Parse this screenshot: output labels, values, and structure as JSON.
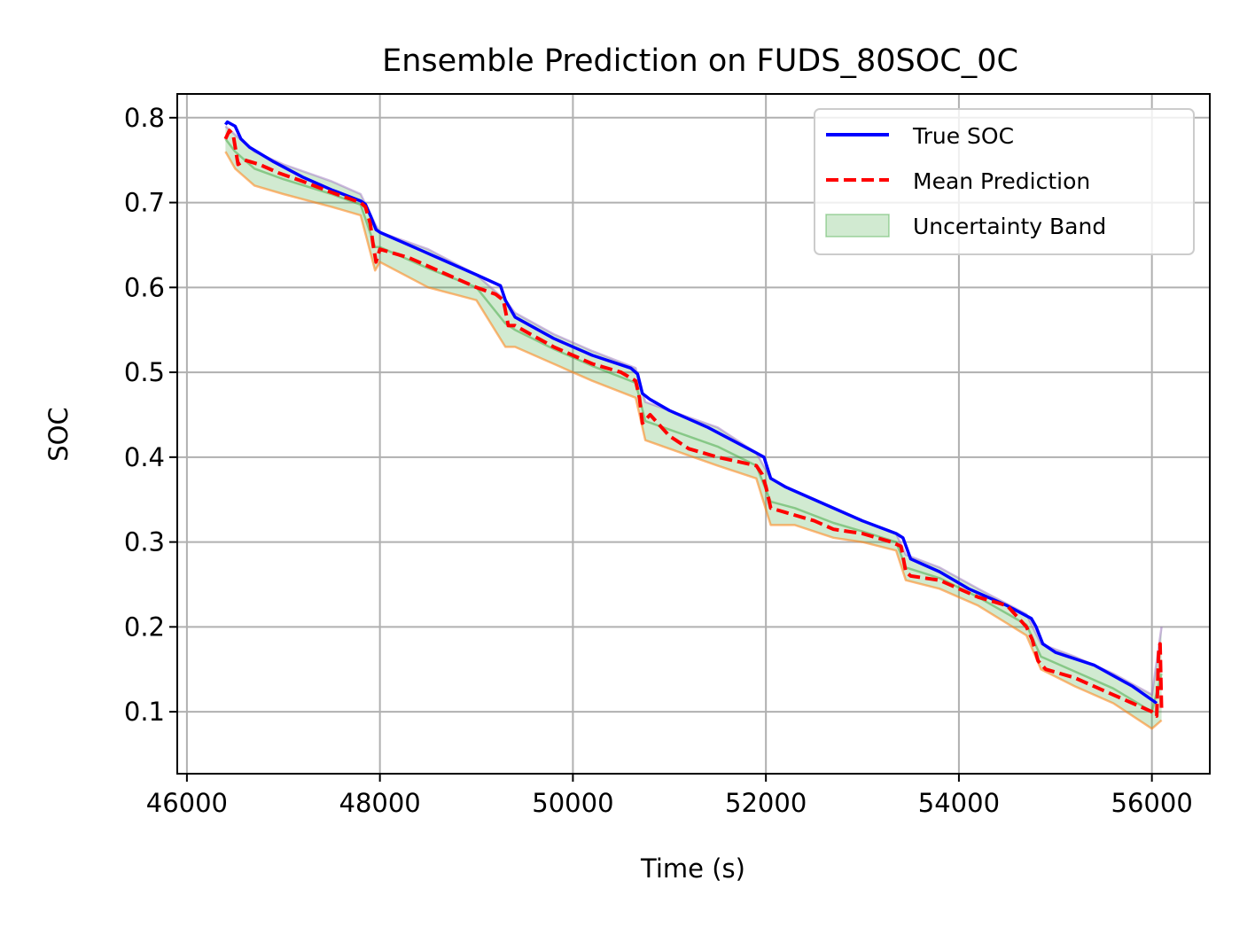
{
  "chart_data": {
    "type": "line",
    "title": "Ensemble Prediction on FUDS_80SOC_0C",
    "xlabel": "Time (s)",
    "ylabel": "SOC",
    "xlim": [
      45900,
      56600
    ],
    "ylim": [
      0.027,
      0.828
    ],
    "xticks": [
      46000,
      48000,
      50000,
      52000,
      54000,
      56000
    ],
    "xtick_labels": [
      "46000",
      "48000",
      "50000",
      "52000",
      "54000",
      "56000"
    ],
    "yticks": [
      0.1,
      0.2,
      0.3,
      0.4,
      0.5,
      0.6,
      0.7,
      0.8
    ],
    "ytick_labels": [
      "0.1",
      "0.2",
      "0.3",
      "0.4",
      "0.5",
      "0.6",
      "0.7",
      "0.8"
    ],
    "grid": true,
    "legend_position": "top-right",
    "legend": [
      "True SOC",
      "Mean Prediction",
      "Uncertainty Band"
    ],
    "colors": {
      "true_soc": "#0000ff",
      "mean_prediction": "#ff0000",
      "band_fill": "#2ca02c",
      "member_orange": "#ff7f0e",
      "member_green": "#2ca02c",
      "member_purple": "#9467bd",
      "grid": "#b0b0b0"
    },
    "series": [
      {
        "name": "True SOC",
        "x": [
          46400,
          46420,
          46500,
          46560,
          46650,
          46900,
          47200,
          47500,
          47800,
          47850,
          47900,
          47960,
          48000,
          48400,
          49000,
          49250,
          49300,
          49400,
          49800,
          50200,
          50600,
          50670,
          50720,
          50800,
          51000,
          51400,
          51900,
          51980,
          52050,
          52200,
          52600,
          53000,
          53350,
          53420,
          53500,
          53800,
          54100,
          54500,
          54750,
          54800,
          54870,
          55000,
          55400,
          55800,
          56050
        ],
        "y": [
          0.792,
          0.795,
          0.79,
          0.775,
          0.765,
          0.748,
          0.73,
          0.715,
          0.702,
          0.698,
          0.685,
          0.668,
          0.665,
          0.645,
          0.615,
          0.602,
          0.585,
          0.565,
          0.54,
          0.52,
          0.505,
          0.498,
          0.475,
          0.468,
          0.455,
          0.435,
          0.405,
          0.4,
          0.375,
          0.365,
          0.345,
          0.325,
          0.31,
          0.305,
          0.28,
          0.265,
          0.245,
          0.225,
          0.21,
          0.2,
          0.18,
          0.17,
          0.155,
          0.13,
          0.11
        ]
      },
      {
        "name": "Mean Prediction",
        "x": [
          46400,
          46440,
          46480,
          46530,
          46600,
          46750,
          46950,
          47200,
          47500,
          47800,
          47850,
          47900,
          47930,
          47960,
          48000,
          48300,
          48700,
          49000,
          49200,
          49280,
          49330,
          49400,
          49800,
          50200,
          50500,
          50650,
          50690,
          50720,
          50800,
          51000,
          51200,
          51500,
          51900,
          51960,
          52000,
          52050,
          52200,
          52500,
          52700,
          53000,
          53300,
          53400,
          53450,
          53500,
          53800,
          54000,
          54200,
          54500,
          54700,
          54760,
          54820,
          54900,
          55200,
          55500,
          55800,
          56000,
          56050,
          56070,
          56085,
          56100
        ],
        "y": [
          0.775,
          0.785,
          0.78,
          0.745,
          0.75,
          0.745,
          0.735,
          0.725,
          0.712,
          0.7,
          0.695,
          0.675,
          0.65,
          0.63,
          0.645,
          0.635,
          0.615,
          0.6,
          0.592,
          0.585,
          0.555,
          0.555,
          0.53,
          0.51,
          0.5,
          0.49,
          0.47,
          0.44,
          0.45,
          0.425,
          0.41,
          0.4,
          0.39,
          0.38,
          0.365,
          0.34,
          0.335,
          0.325,
          0.315,
          0.31,
          0.3,
          0.295,
          0.265,
          0.26,
          0.255,
          0.245,
          0.235,
          0.225,
          0.2,
          0.185,
          0.16,
          0.15,
          0.14,
          0.125,
          0.11,
          0.1,
          0.095,
          0.17,
          0.18,
          0.1
        ]
      }
    ],
    "uncertainty_band": {
      "x": [
        46400,
        46500,
        46700,
        47000,
        47500,
        47800,
        47950,
        48000,
        48500,
        49000,
        49300,
        49400,
        49800,
        50200,
        50650,
        50750,
        51000,
        51500,
        51900,
        52050,
        52300,
        52700,
        53000,
        53350,
        53450,
        53800,
        54200,
        54700,
        54850,
        55200,
        55600,
        56000,
        56100
      ],
      "lower": [
        0.76,
        0.74,
        0.72,
        0.71,
        0.695,
        0.685,
        0.62,
        0.63,
        0.6,
        0.585,
        0.53,
        0.53,
        0.51,
        0.49,
        0.47,
        0.42,
        0.41,
        0.39,
        0.375,
        0.32,
        0.32,
        0.305,
        0.3,
        0.29,
        0.255,
        0.245,
        0.225,
        0.19,
        0.15,
        0.13,
        0.11,
        0.08,
        0.09
      ],
      "upper": [
        0.79,
        0.78,
        0.76,
        0.745,
        0.725,
        0.71,
        0.675,
        0.665,
        0.645,
        0.615,
        0.585,
        0.57,
        0.545,
        0.525,
        0.505,
        0.465,
        0.455,
        0.435,
        0.405,
        0.375,
        0.36,
        0.34,
        0.325,
        0.31,
        0.285,
        0.27,
        0.245,
        0.215,
        0.18,
        0.165,
        0.145,
        0.12,
        0.2
      ]
    }
  }
}
